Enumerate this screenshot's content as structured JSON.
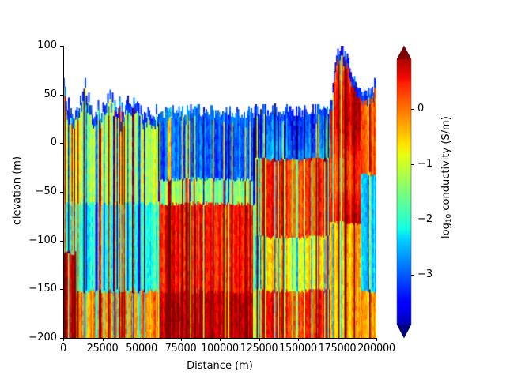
{
  "chart_data": {
    "type": "heatmap",
    "title": "",
    "xlabel": "Distance (m)",
    "ylabel": "elevation (m)",
    "xlim": [
      0,
      200000
    ],
    "ylim": [
      -200,
      100
    ],
    "x_ticks": [
      "0",
      "25000",
      "50000",
      "75000",
      "100000",
      "125000",
      "150000",
      "175000",
      "200000"
    ],
    "y_ticks": [
      "100",
      "50",
      "0",
      "−50",
      "−100",
      "−150",
      "−200"
    ],
    "colormap": "jet",
    "colorbar": {
      "label_prefix": "log",
      "label_sub": "10",
      "label_suffix": " conductivity (S/m)",
      "ticks": [
        "0",
        "−1",
        "−2",
        "−3"
      ],
      "tick_values": [
        0,
        -1,
        -2,
        -3
      ],
      "range": [
        -3.9,
        0.9
      ],
      "extend": "both"
    },
    "surface_profile": [
      [
        0,
        65
      ],
      [
        2000,
        40
      ],
      [
        5000,
        28
      ],
      [
        10000,
        30
      ],
      [
        13000,
        55
      ],
      [
        16000,
        40
      ],
      [
        20000,
        28
      ],
      [
        25000,
        30
      ],
      [
        28000,
        45
      ],
      [
        32000,
        32
      ],
      [
        37000,
        28
      ],
      [
        40000,
        35
      ],
      [
        45000,
        45
      ],
      [
        48000,
        30
      ],
      [
        55000,
        30
      ],
      [
        60000,
        32
      ],
      [
        70000,
        33
      ],
      [
        80000,
        34
      ],
      [
        90000,
        34
      ],
      [
        100000,
        32
      ],
      [
        110000,
        33
      ],
      [
        120000,
        33
      ],
      [
        130000,
        35
      ],
      [
        140000,
        34
      ],
      [
        150000,
        34
      ],
      [
        160000,
        34
      ],
      [
        168000,
        35
      ],
      [
        170000,
        35
      ],
      [
        172000,
        60
      ],
      [
        175000,
        98
      ],
      [
        180000,
        95
      ],
      [
        184000,
        75
      ],
      [
        187000,
        60
      ],
      [
        190000,
        50
      ],
      [
        195000,
        52
      ],
      [
        198000,
        60
      ],
      [
        200000,
        65
      ]
    ],
    "regions": [
      {
        "x_range": [
          0,
          60000
        ],
        "description": "mixed resistive/conductive vertical streaks; near-surface yellow-green; deep red below -110 m at far left"
      },
      {
        "x_range": [
          60000,
          120000
        ],
        "description": "resistive (blue) layer from surface to ~-40 m; conductive (orange-red) below ~-60 m"
      },
      {
        "x_range": [
          120000,
          165000
        ],
        "description": "resistive blue near surface; conductive orange-red body from -20 to -90 m; mixed below"
      },
      {
        "x_range": [
          165000,
          190000
        ],
        "description": "elevated terrain up to ~100 m; highly conductive (red-orange) body from surface down to -80 m"
      },
      {
        "x_range": [
          190000,
          200000
        ],
        "description": "moderately conductive near surface, resistive blue zone -30 to -150 m"
      }
    ]
  }
}
